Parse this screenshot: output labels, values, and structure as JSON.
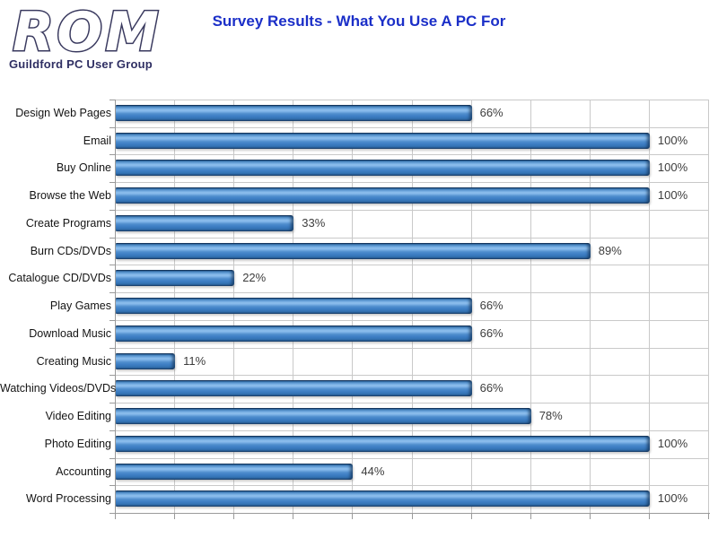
{
  "header": {
    "logo_text": "ROM",
    "logo_subtitle": "Guildford PC User Group",
    "title": "Survey Results - What You Use A PC For",
    "title_color": "#1b2fc8",
    "logo_outline_color": "#3a3a5f",
    "logo_subtitle_color": "#2f2f63"
  },
  "chart_data": {
    "type": "bar",
    "orientation": "horizontal",
    "title": "Survey Results - What You Use A PC For",
    "categories": [
      "Design Web Pages",
      "Email",
      "Buy Online",
      "Browse the Web",
      "Create Programs",
      "Burn CDs/DVDs",
      "Catalogue CD/DVDs",
      "Play Games",
      "Download Music",
      "Creating Music",
      "Watching Videos/DVDs",
      "Video Editing",
      "Photo Editing",
      "Accounting",
      "Word Processing"
    ],
    "values_percent": [
      66,
      100,
      100,
      100,
      33,
      89,
      22,
      66,
      66,
      11,
      66,
      78,
      100,
      44,
      100
    ],
    "value_labels": [
      "66%",
      "100%",
      "100%",
      "100%",
      "33%",
      "89%",
      "22%",
      "66%",
      "66%",
      "11%",
      "66%",
      "78%",
      "100%",
      "44%",
      "100%"
    ],
    "plotted_units": [
      6,
      9,
      9,
      9,
      3,
      8,
      2,
      6,
      6,
      1,
      6,
      7,
      9,
      4,
      9
    ],
    "axis": {
      "x_min_units": 0,
      "x_max_units": 10,
      "gridline_interval_units": 1,
      "x_tick_labels_visible": false,
      "grid": "vertical-and-horizontal"
    },
    "legend": "none",
    "bar_color": "#3d7ec4",
    "bar_gradient": [
      "#16375f",
      "#8fc0ee",
      "#3d7ec4",
      "#16375f"
    ],
    "gridline_color": "#c9c9c9",
    "axis_color": "#9a9a9a",
    "value_label_color": "#3d3d3d",
    "category_label_color": "#141414"
  }
}
